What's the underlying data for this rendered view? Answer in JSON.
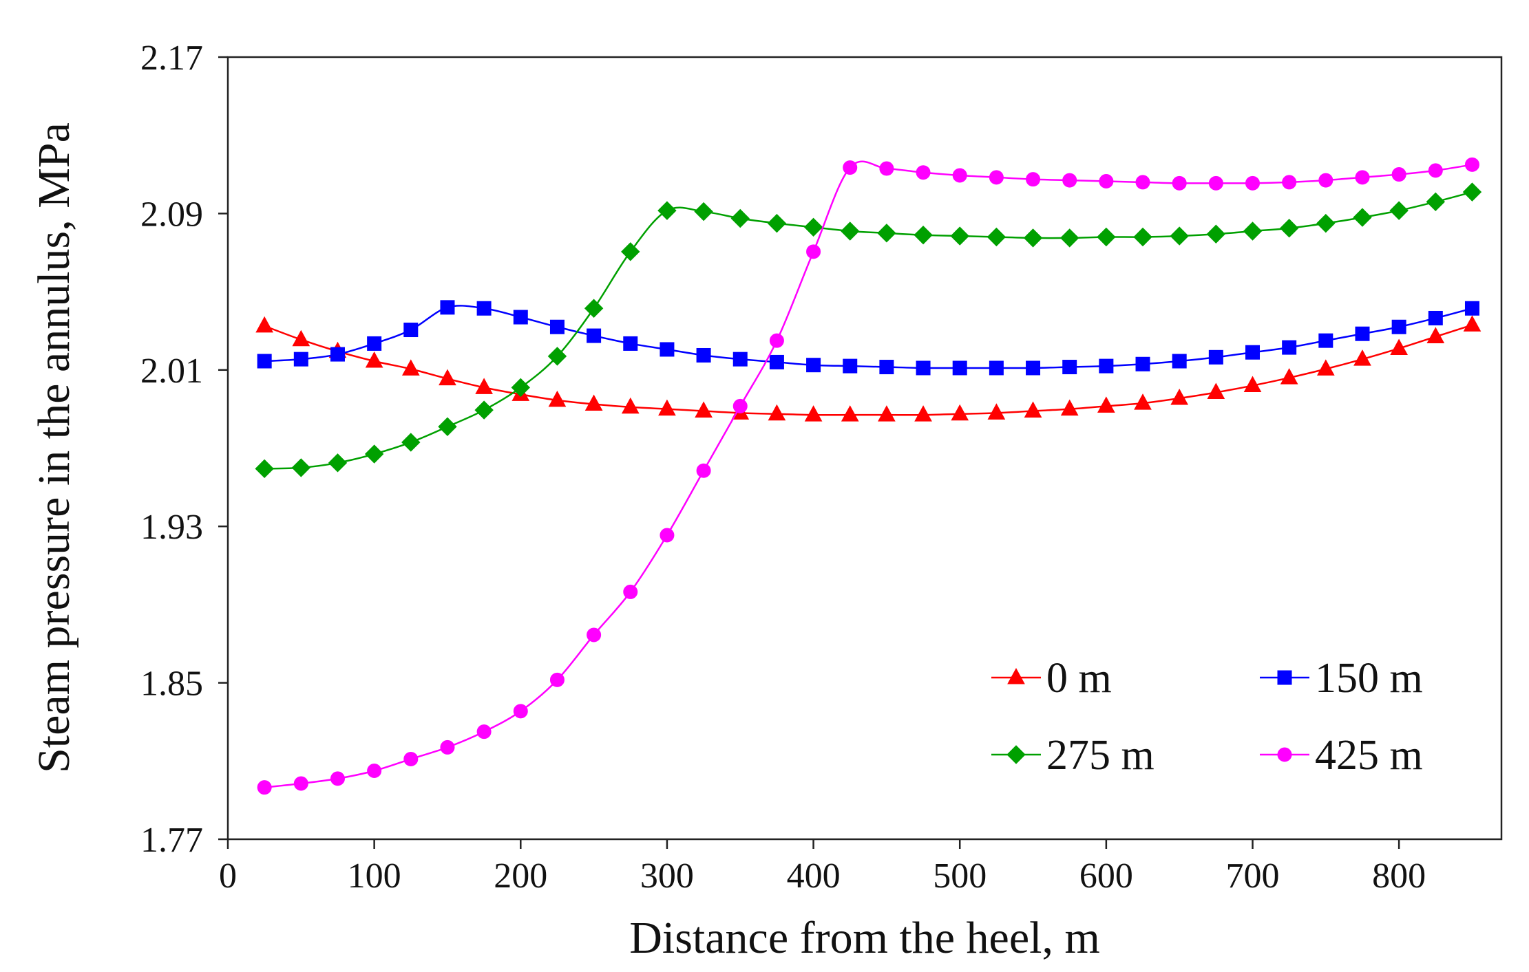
{
  "chart_data": {
    "type": "line",
    "title": "",
    "xlabel": "Distance from the heel, m",
    "ylabel": "Steam pressure in the annulus, MPa",
    "xlim": [
      0,
      870
    ],
    "ylim": [
      1.77,
      2.17
    ],
    "xticks": [
      0,
      100,
      200,
      300,
      400,
      500,
      600,
      700,
      800
    ],
    "yticks": [
      1.77,
      1.85,
      1.93,
      2.01,
      2.09,
      2.17
    ],
    "ytick_labels": [
      "1.77",
      "1.85",
      "1.93",
      "2.01",
      "2.09",
      "2.17"
    ],
    "grid": false,
    "legend": "bottom-right, two columns",
    "x": [
      25,
      50,
      75,
      100,
      125,
      150,
      175,
      200,
      225,
      250,
      275,
      300,
      325,
      350,
      375,
      400,
      425,
      450,
      475,
      500,
      525,
      550,
      575,
      600,
      625,
      650,
      675,
      700,
      725,
      750,
      775,
      800,
      825,
      850
    ],
    "series": [
      {
        "name": "0 m",
        "color": "#ff0000",
        "marker": "triangle",
        "values": [
          2.0325,
          2.0255,
          2.0195,
          2.0145,
          2.0105,
          2.0055,
          2.001,
          1.9975,
          1.9945,
          1.9925,
          1.991,
          1.99,
          1.989,
          1.988,
          1.9875,
          1.987,
          1.987,
          1.987,
          1.987,
          1.9875,
          1.988,
          1.989,
          1.99,
          1.9915,
          1.993,
          1.9955,
          1.9985,
          2.002,
          2.006,
          2.0105,
          2.0155,
          2.021,
          2.027,
          2.033
        ]
      },
      {
        "name": "150 m",
        "color": "#0000ff",
        "marker": "square",
        "values": [
          2.0145,
          2.0155,
          2.018,
          2.0235,
          2.0305,
          2.042,
          2.0415,
          2.037,
          2.032,
          2.0275,
          2.0235,
          2.0205,
          2.0175,
          2.0155,
          2.014,
          2.0125,
          2.012,
          2.0115,
          2.011,
          2.011,
          2.011,
          2.011,
          2.0115,
          2.012,
          2.013,
          2.0145,
          2.0165,
          2.019,
          2.0215,
          2.025,
          2.0285,
          2.032,
          2.0365,
          2.0415
        ]
      },
      {
        "name": "275 m",
        "color": "#00a000",
        "marker": "diamond",
        "values": [
          1.9595,
          1.96,
          1.9625,
          1.967,
          1.973,
          1.981,
          1.9895,
          2.001,
          2.017,
          2.0415,
          2.0705,
          2.0915,
          2.091,
          2.0875,
          2.085,
          2.083,
          2.081,
          2.08,
          2.079,
          2.0785,
          2.078,
          2.0775,
          2.0775,
          2.078,
          2.078,
          2.0785,
          2.0795,
          2.081,
          2.0825,
          2.085,
          2.088,
          2.0915,
          2.096,
          2.101
        ]
      },
      {
        "name": "425 m",
        "color": "#ff00ff",
        "marker": "circle",
        "values": [
          1.7965,
          1.7985,
          1.801,
          1.805,
          1.811,
          1.817,
          1.825,
          1.8355,
          1.8515,
          1.8745,
          1.8965,
          1.9255,
          1.9585,
          1.9915,
          2.025,
          2.0705,
          2.1135,
          2.113,
          2.111,
          2.1095,
          2.1085,
          2.1075,
          2.107,
          2.1065,
          2.106,
          2.1055,
          2.1055,
          2.1055,
          2.106,
          2.107,
          2.1085,
          2.11,
          2.112,
          2.115
        ]
      }
    ]
  }
}
